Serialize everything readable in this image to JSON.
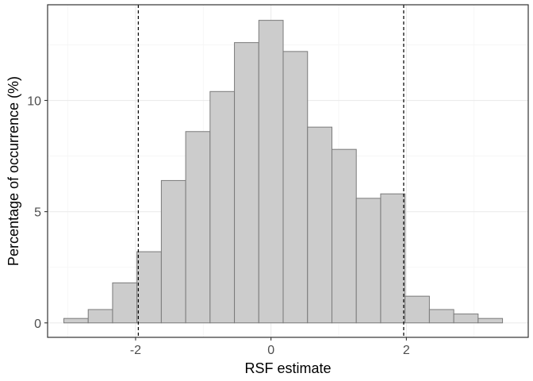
{
  "chart_data": {
    "type": "bar",
    "subtype": "histogram",
    "title": "",
    "xlabel": "RSF estimate",
    "ylabel": "Percentage of occurrence (%)",
    "xlim": [
      -3.3,
      3.8
    ],
    "ylim": [
      -0.65,
      14.3
    ],
    "x_ticks": [
      -2,
      0,
      2
    ],
    "y_ticks": [
      0,
      5,
      10
    ],
    "bin_width": 0.36,
    "bins": [
      {
        "x0": -3.06,
        "x1": -2.7,
        "value": 0.2
      },
      {
        "x0": -2.7,
        "x1": -2.34,
        "value": 0.6
      },
      {
        "x0": -2.34,
        "x1": -1.98,
        "value": 1.8
      },
      {
        "x0": -1.98,
        "x1": -1.62,
        "value": 3.2
      },
      {
        "x0": -1.62,
        "x1": -1.26,
        "value": 6.4
      },
      {
        "x0": -1.26,
        "x1": -0.9,
        "value": 8.6
      },
      {
        "x0": -0.9,
        "x1": -0.54,
        "value": 10.4
      },
      {
        "x0": -0.54,
        "x1": -0.18,
        "value": 12.6
      },
      {
        "x0": -0.18,
        "x1": 0.18,
        "value": 13.6
      },
      {
        "x0": 0.18,
        "x1": 0.54,
        "value": 12.2
      },
      {
        "x0": 0.54,
        "x1": 0.9,
        "value": 8.8
      },
      {
        "x0": 0.9,
        "x1": 1.26,
        "value": 7.8
      },
      {
        "x0": 1.26,
        "x1": 1.62,
        "value": 5.6
      },
      {
        "x0": 1.62,
        "x1": 1.98,
        "value": 5.8
      },
      {
        "x0": 1.98,
        "x1": 2.34,
        "value": 1.2
      },
      {
        "x0": 2.34,
        "x1": 2.7,
        "value": 0.6
      },
      {
        "x0": 2.7,
        "x1": 3.06,
        "value": 0.4
      },
      {
        "x0": 3.06,
        "x1": 3.42,
        "value": 0.2
      }
    ],
    "reference_lines": [
      {
        "axis": "x",
        "value": -1.96,
        "style": "dashed"
      },
      {
        "axis": "x",
        "value": 1.96,
        "style": "dashed"
      }
    ],
    "grid": true,
    "legend": "none",
    "colors": {
      "bar_fill": "#cccccc",
      "bar_stroke": "#7a7a7a",
      "grid_major": "#ebebeb",
      "grid_minor": "#f5f5f5",
      "panel_border": "#333333",
      "reference_line": "#000000"
    }
  }
}
